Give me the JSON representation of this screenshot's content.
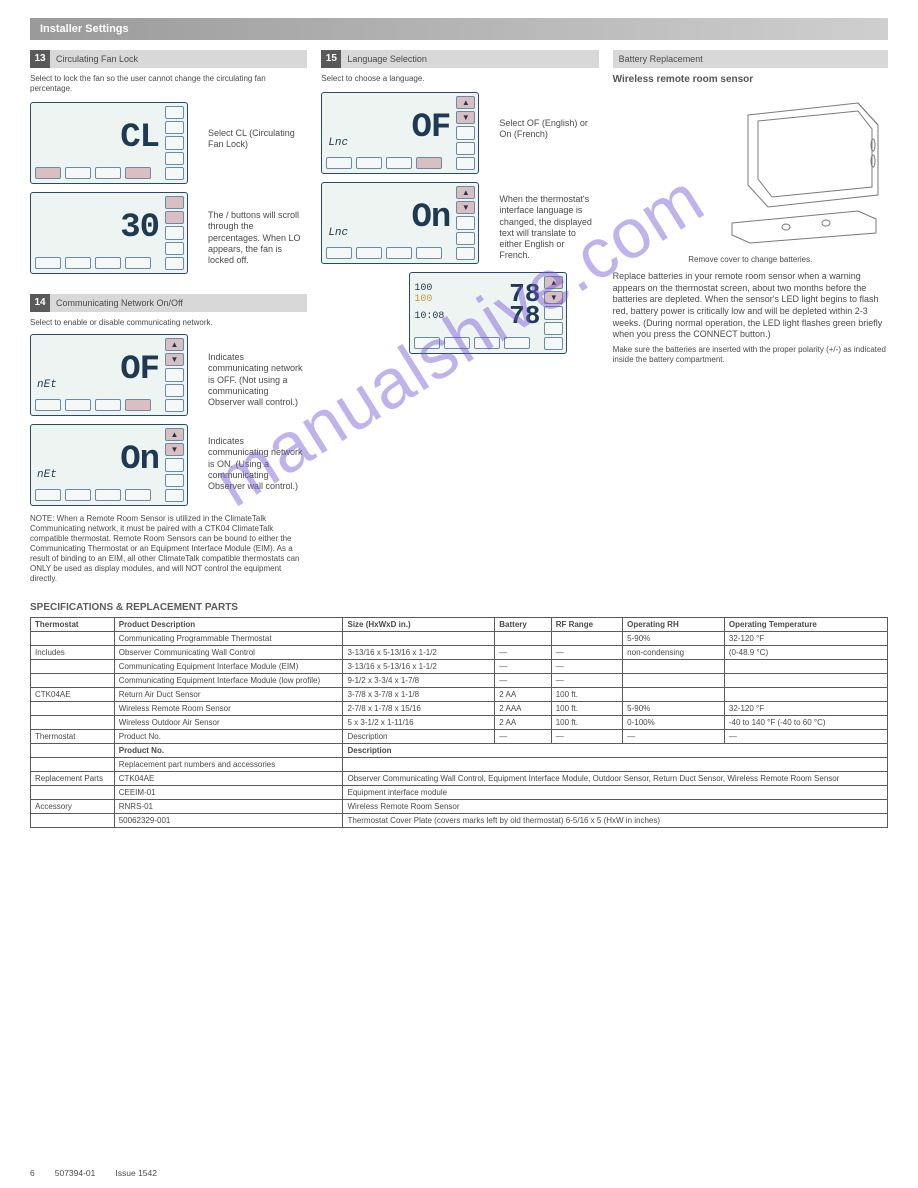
{
  "header": {
    "title": "Installer Settings"
  },
  "sections": {
    "s13": {
      "num": "13",
      "title": "Circulating Fan Lock",
      "intro": "Select to lock the fan so the user cannot change the circulating fan percentage.",
      "lcd1_main": "CL",
      "lcd1_desc": "Select CL (Circulating Fan Lock)",
      "lcd2_main": "30",
      "lcd2_desc": "The    /    buttons will scroll through the percentages. When LO appears, the fan is locked off."
    },
    "s14": {
      "num": "14",
      "title": "Communicating Network On/Off",
      "intro": "Select to enable or disable communicating network.",
      "lcd1_label": "nEt",
      "lcd1_main": "OF",
      "lcd1_desc": "Indicates communicating network is OFF. (Not using a communicating Observer wall control.)",
      "lcd2_label": "nEt",
      "lcd2_main": "On",
      "lcd2_desc": "Indicates communicating network is ON. (Using a communicating Observer wall control.)",
      "note": "NOTE: When a Remote Room Sensor is utilized in the ClimateTalk Communicating network, it must be paired with a CTK04 ClimateTalk compatible thermostat. Remote Room Sensors can be bound to either the Communicating Thermostat or an Equipment Interface Module (EIM). As a result of binding to an EIM, all other ClimateTalk compatible thermostats can ONLY be used as display modules, and will NOT control the equipment directly."
    },
    "s15": {
      "num": "15",
      "title": "Language Selection",
      "intro": "Select to choose a language.",
      "lcd1_label": "Lnc",
      "lcd1_main": "OF",
      "lcd1_desc": "Select OF (English) or On (French)",
      "lcd2_label": "Lnc",
      "lcd2_main": "On",
      "lcd2_desc": "When the thermostat's interface language is changed, the displayed text will translate to either English or French.",
      "dual": {
        "r1_t": "100",
        "r1_sub": "100",
        "r1_v": "78",
        "r2_t": "10:08",
        "r2_v": "78"
      }
    },
    "battery": {
      "title": "Battery Replacement",
      "heading": "Wireless remote room sensor",
      "body": "Replace batteries in your remote room sensor when a warning appears on the thermostat screen, about two months before the batteries are depleted. When the sensor's LED light begins to flash red, battery power is critically low and will be depleted within 2-3 weeks. (During normal operation, the LED light flashes green briefly when you press the CONNECT button.)",
      "caption": "Remove cover to change batteries.",
      "foot": "Make sure the batteries are inserted with the proper polarity (+/-) as indicated inside the battery compartment."
    }
  },
  "table": {
    "title": "SPECIFICATIONS & REPLACEMENT PARTS",
    "rows_top": [
      [
        "Thermostat",
        "Product Description",
        "Size (HxWxD in.)",
        "Battery",
        "RF Range",
        "Operating RH",
        "Operating Temperature"
      ],
      [
        "",
        "Communicating Programmable Thermostat",
        "",
        "",
        "",
        "5-90%",
        "32-120 °F"
      ],
      [
        "Includes",
        "Observer Communicating Wall Control",
        "3-13/16 x 5-13/16 x 1-1/2",
        "—",
        "—",
        "non-condensing",
        "(0-48.9 °C)"
      ],
      [
        "",
        "Communicating Equipment Interface Module (EIM)",
        "3-13/16 x 5-13/16 x 1-1/2",
        "—",
        "—",
        "",
        ""
      ],
      [
        "",
        "Communicating Equipment Interface Module (low profile)",
        "9-1/2 x 3-3/4 x 1-7/8",
        "—",
        "—",
        "",
        ""
      ],
      [
        "CTK04AE",
        "Return Air Duct Sensor",
        "3-7/8 x 3-7/8 x 1-1/8",
        "2 AA",
        "100 ft.",
        "",
        ""
      ],
      [
        "",
        "Wireless Remote Room Sensor",
        "2-7/8 x 1-7/8 x 15/16",
        "2 AAA",
        "100 ft.",
        "5-90%",
        "32-120 °F"
      ],
      [
        "",
        "Wireless Outdoor Air Sensor",
        "5 x 3-1/2 x 1-11/16",
        "2 AA",
        "100 ft.",
        "0-100%",
        "-40 to 140 °F (-40 to 60 °C)"
      ],
      [
        "Thermostat",
        "Product No.",
        "Description",
        "—",
        "—",
        "—",
        "—"
      ]
    ],
    "rows_rep": [
      [
        "",
        "Replacement part numbers and accessories",
        "",
        ""
      ],
      [
        "Replacement Parts",
        "CTK04AE",
        "Observer Communicating Wall Control, Equipment Interface Module, Outdoor Sensor, Return Duct Sensor, Wireless Remote Room Sensor",
        ""
      ],
      [
        "",
        "CEEIM-01",
        "Equipment interface module",
        ""
      ],
      [
        "Accessory",
        "RNRS-01",
        "Wireless Remote Room Sensor",
        ""
      ],
      [
        "",
        "50062329-001",
        "Thermostat Cover Plate (covers marks left by old thermostat) 6-5/16 x 5 (HxW in inches)",
        ""
      ]
    ]
  },
  "footer": {
    "page": "6",
    "code": "507394-01",
    "issue": "Issue 1542"
  },
  "watermark": "manualshive.com"
}
